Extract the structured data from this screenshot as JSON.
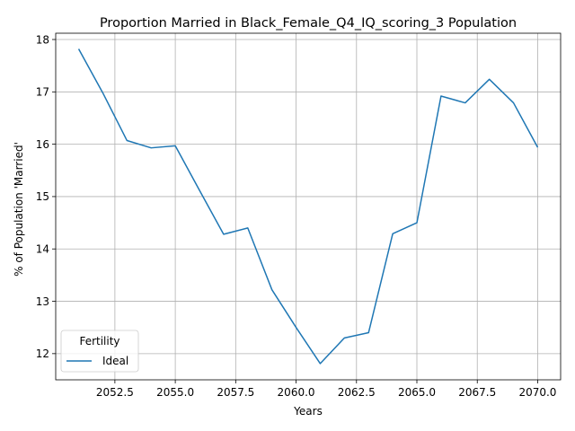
{
  "chart_data": {
    "type": "line",
    "title": "Proportion Married in Black_Female_Q4_IQ_scoring_3 Population",
    "xlabel": "Years",
    "ylabel": "% of Population 'Married'",
    "xlim": [
      2050.05,
      2070.95
    ],
    "ylim": [
      11.5,
      18.12
    ],
    "xticks": [
      2052.5,
      2055.0,
      2057.5,
      2060.0,
      2062.5,
      2065.0,
      2067.5,
      2070.0
    ],
    "xtick_labels": [
      "2052.5",
      "2055.0",
      "2057.5",
      "2060.0",
      "2062.5",
      "2065.0",
      "2067.5",
      "2070.0"
    ],
    "yticks": [
      12,
      13,
      14,
      15,
      16,
      17,
      18
    ],
    "ytick_labels": [
      "12",
      "13",
      "14",
      "15",
      "16",
      "17",
      "18"
    ],
    "grid": true,
    "legend": {
      "title": "Fertility",
      "placement": "lower-left"
    },
    "series": [
      {
        "name": "Ideal",
        "color": "#1f77b4",
        "x": [
          2051,
          2052,
          2053,
          2054,
          2055,
          2056,
          2057,
          2058,
          2059,
          2060,
          2061,
          2062,
          2063,
          2064,
          2065,
          2066,
          2067,
          2068,
          2069,
          2070
        ],
        "y": [
          17.82,
          16.98,
          16.07,
          15.93,
          15.97,
          15.12,
          14.28,
          14.4,
          13.22,
          12.5,
          11.81,
          12.3,
          12.4,
          14.29,
          14.5,
          16.92,
          16.79,
          17.24,
          16.79,
          15.94
        ]
      }
    ]
  }
}
